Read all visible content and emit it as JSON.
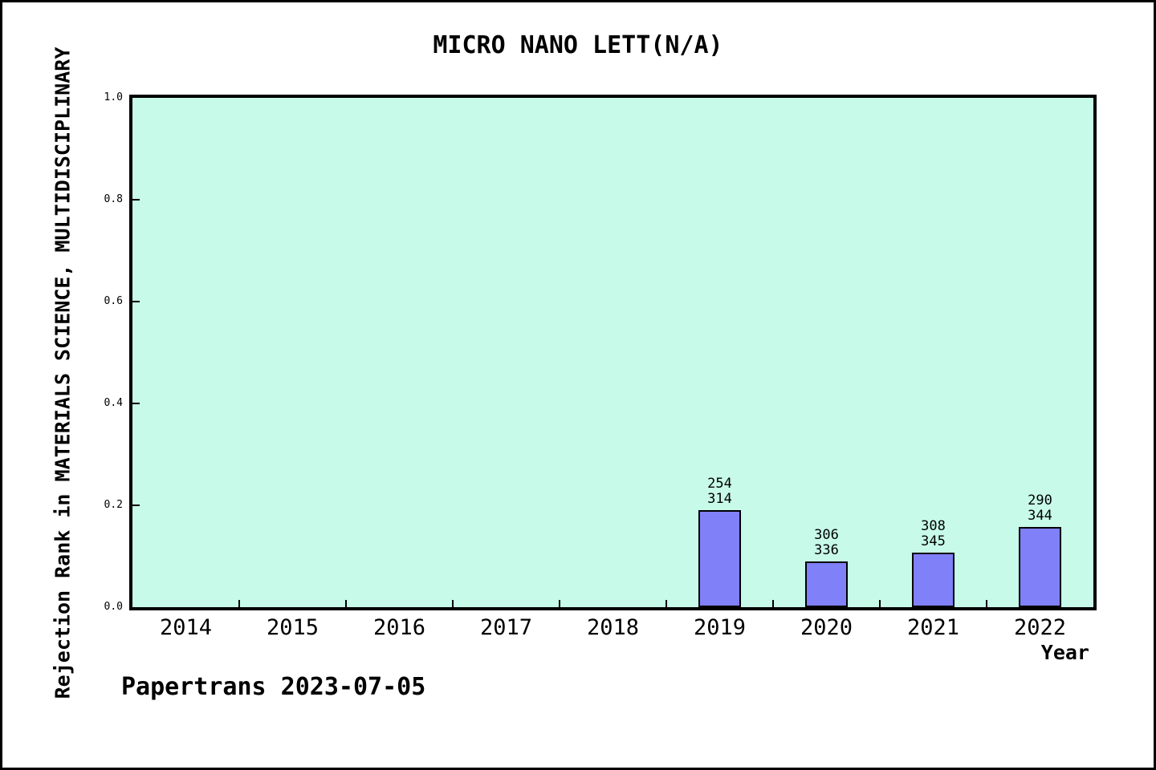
{
  "frame": {
    "background_color": "#ffffff",
    "border_color": "#000000"
  },
  "chart_data": {
    "type": "bar",
    "title": "MICRO NANO LETT(N/A)",
    "xlabel": "Year",
    "ylabel": "Rejection Rank in MATERIALS SCIENCE, MULTIDISCIPLINARY",
    "annotation": "Papertrans 2023-07-05",
    "categories": [
      "2014",
      "2015",
      "2016",
      "2017",
      "2018",
      "2019",
      "2020",
      "2021",
      "2022"
    ],
    "bars": [
      {
        "year": "2014",
        "rank": null,
        "total": null,
        "value": null
      },
      {
        "year": "2015",
        "rank": null,
        "total": null,
        "value": null
      },
      {
        "year": "2016",
        "rank": null,
        "total": null,
        "value": null
      },
      {
        "year": "2017",
        "rank": null,
        "total": null,
        "value": null
      },
      {
        "year": "2018",
        "rank": null,
        "total": null,
        "value": null
      },
      {
        "year": "2019",
        "rank": 254,
        "total": 314,
        "value": 0.1911
      },
      {
        "year": "2020",
        "rank": 306,
        "total": 336,
        "value": 0.0893
      },
      {
        "year": "2021",
        "rank": 308,
        "total": 345,
        "value": 0.1072
      },
      {
        "year": "2022",
        "rank": 290,
        "total": 344,
        "value": 0.157
      }
    ],
    "ylim": [
      0.0,
      1.0
    ],
    "yticks": [
      "0.0",
      "0.2",
      "0.4",
      "0.6",
      "0.8",
      "1.0"
    ],
    "grid": false,
    "legend": null,
    "colors": {
      "plot_background": "#c7fae9",
      "bar_fill": "#8080f8",
      "bar_border": "#000000",
      "axis": "#000000",
      "text": "#000000"
    }
  }
}
